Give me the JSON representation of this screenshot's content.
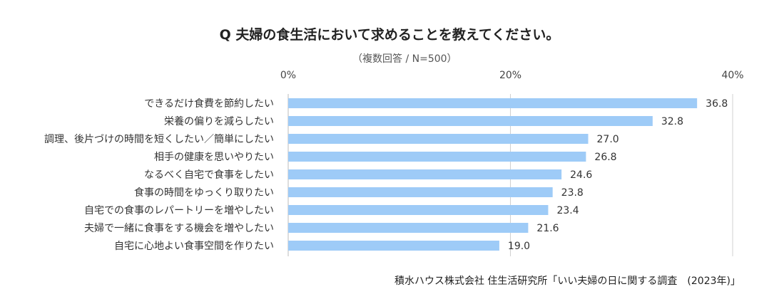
{
  "chart_data": {
    "type": "bar",
    "orientation": "horizontal",
    "title": "Q  夫婦の食生活において求めることを教えてください。",
    "subtitle": "（複数回答 / N=500）",
    "source": "積水ハウス株式会社 住生活研究所「いい夫婦の日に関する調査　(2023年)」",
    "categories": [
      "できるだけ食費を節約したい",
      "栄養の偏りを減らしたい",
      "調理、後片づけの時間を短くしたい／簡単にしたい",
      "相手の健康を思いやりたい",
      "なるべく自宅で食事をしたい",
      "食事の時間をゆっくり取りたい",
      "自宅での食事のレパートリーを増やしたい",
      "夫婦で一緒に食事をする機会を増やしたい",
      "自宅に心地よい食事空間を作りたい"
    ],
    "values": [
      36.8,
      32.8,
      27.0,
      26.8,
      24.6,
      23.8,
      23.4,
      21.6,
      19.0
    ],
    "value_labels": [
      "36.8",
      "32.8",
      "27.0",
      "26.8",
      "24.6",
      "23.8",
      "23.4",
      "21.6",
      "19.0"
    ],
    "xlim": [
      0,
      40
    ],
    "xticks": [
      0,
      20,
      40
    ],
    "xtick_labels": [
      "0%",
      "20%",
      "40%"
    ],
    "xaxis_position": "top",
    "grid": true,
    "bar_color": "#9ecbf7",
    "grid_color": "#d0d0d0"
  }
}
